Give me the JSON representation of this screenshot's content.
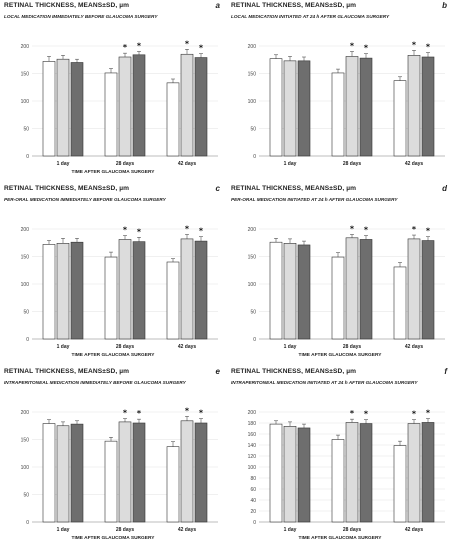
{
  "chart_data": [
    {
      "id": "a",
      "type": "bar",
      "letter": "a",
      "title": "RETINAL THICKNESS, MEANS±SD, µm",
      "subtitle": "LOCAL MEDICATION IMMEDIATELY BEFORE GLAUCOMA SURGERY",
      "xlabel": "TIME AFTER GLAUCOMA SURGERY",
      "ylabel": "",
      "categories": [
        "1 day",
        "28 days",
        "42 days"
      ],
      "yticks": [
        0,
        50,
        100,
        150,
        200
      ],
      "ylim": [
        0,
        200
      ],
      "series": [
        {
          "color": "#ffffff",
          "values": [
            172,
            151,
            133
          ],
          "sd": [
            9,
            8,
            7
          ]
        },
        {
          "color": "#dcdcdc",
          "values": [
            176,
            180,
            185
          ],
          "sd": [
            7,
            7,
            9
          ]
        },
        {
          "color": "#6e6e6e",
          "values": [
            170,
            184,
            179
          ],
          "sd": [
            6,
            6,
            7
          ]
        }
      ],
      "stars": [
        [
          false,
          false,
          false
        ],
        [
          false,
          true,
          true
        ],
        [
          false,
          true,
          true
        ]
      ]
    },
    {
      "id": "b",
      "type": "bar",
      "letter": "b",
      "title": "RETINAL THICKNESS, MEANS±SD, µm",
      "subtitle": "LOCAL MEDICATION INITIATED AT 24 h AFTER GLAUCOMA SURGERY",
      "xlabel": "",
      "ylabel": "",
      "categories": [
        "1 day",
        "28 days",
        "42 days"
      ],
      "yticks": [
        0,
        50,
        100,
        150,
        200
      ],
      "ylim": [
        0,
        200
      ],
      "series": [
        {
          "color": "#ffffff",
          "values": [
            177,
            151,
            137
          ],
          "sd": [
            7,
            7,
            7
          ]
        },
        {
          "color": "#dcdcdc",
          "values": [
            173,
            181,
            183
          ],
          "sd": [
            8,
            9,
            9
          ]
        },
        {
          "color": "#6e6e6e",
          "values": [
            173,
            178,
            180
          ],
          "sd": [
            7,
            8,
            8
          ]
        }
      ],
      "stars": [
        [
          false,
          false,
          false
        ],
        [
          false,
          true,
          true
        ],
        [
          false,
          true,
          true
        ]
      ]
    },
    {
      "id": "c",
      "type": "bar",
      "letter": "c",
      "title": "RETINAL THICKNESS, MEANS±SD, µm",
      "subtitle": "PER-ORAL MEDICATION IMMEDIATELY BEFORE GLAUCOMA SURGERY",
      "xlabel": "TIME AFTER GLAUCOMA SURGERY",
      "ylabel": "",
      "categories": [
        "1 day",
        "28 days",
        "42 days"
      ],
      "yticks": [
        0,
        50,
        100,
        150,
        200
      ],
      "ylim": [
        0,
        200
      ],
      "series": [
        {
          "color": "#ffffff",
          "values": [
            172,
            149,
            140
          ],
          "sd": [
            7,
            9,
            6
          ]
        },
        {
          "color": "#dcdcdc",
          "values": [
            174,
            181,
            182
          ],
          "sd": [
            9,
            7,
            8
          ]
        },
        {
          "color": "#6e6e6e",
          "values": [
            176,
            177,
            178
          ],
          "sd": [
            7,
            8,
            8
          ]
        }
      ],
      "stars": [
        [
          false,
          false,
          false
        ],
        [
          false,
          true,
          true
        ],
        [
          false,
          true,
          true
        ]
      ]
    },
    {
      "id": "d",
      "type": "bar",
      "letter": "d",
      "title": "RETINAL THICKNESS, MEANS±SD, µm",
      "subtitle": "PER-ORAL MEDICATION INITIATED AT 24 h AFTER GLAUCOMA SURGERY",
      "xlabel": "TIME AFTER GLAUCOMA SURGERY",
      "ylabel": "",
      "categories": [
        "1 day",
        "28 days",
        "42 days"
      ],
      "yticks": [
        0,
        50,
        100,
        150,
        200
      ],
      "ylim": [
        0,
        200
      ],
      "series": [
        {
          "color": "#ffffff",
          "values": [
            176,
            149,
            131
          ],
          "sd": [
            7,
            8,
            8
          ]
        },
        {
          "color": "#dcdcdc",
          "values": [
            174,
            184,
            182
          ],
          "sd": [
            8,
            6,
            7
          ]
        },
        {
          "color": "#6e6e6e",
          "values": [
            171,
            181,
            179
          ],
          "sd": [
            7,
            7,
            7
          ]
        }
      ],
      "stars": [
        [
          false,
          false,
          false
        ],
        [
          false,
          true,
          true
        ],
        [
          false,
          true,
          true
        ]
      ]
    },
    {
      "id": "e",
      "type": "bar",
      "letter": "e",
      "title": "RETINAL THICKNESS, MEANS±SD, µm",
      "subtitle": "INTRAPERITONEAL MEDICATION IMMEDIATELY BEFORE GLAUCOMA SURGERY",
      "xlabel": "TIME AFTER GLAUCOMA SURGERY",
      "ylabel": "",
      "categories": [
        "1 day",
        "28 days",
        "42 days"
      ],
      "yticks": [
        0,
        50,
        100,
        150,
        200
      ],
      "ylim": [
        0,
        200
      ],
      "series": [
        {
          "color": "#ffffff",
          "values": [
            179,
            147,
            137
          ],
          "sd": [
            7,
            7,
            9
          ]
        },
        {
          "color": "#dcdcdc",
          "values": [
            175,
            182,
            184
          ],
          "sd": [
            7,
            6,
            8
          ]
        },
        {
          "color": "#6e6e6e",
          "values": [
            178,
            180,
            180
          ],
          "sd": [
            6,
            7,
            8
          ]
        }
      ],
      "stars": [
        [
          false,
          false,
          false
        ],
        [
          false,
          true,
          true
        ],
        [
          false,
          true,
          true
        ]
      ]
    },
    {
      "id": "f",
      "type": "bar",
      "letter": "f",
      "title": "RETINAL THICKNESS, MEANS±SD, µm",
      "subtitle": "INTRAPERITONEAL MEDICATION INITIATED AT 24 h AFTER GLAUCOMA SURGERY",
      "xlabel": "TIME AFTER GLAUCOMA SURGERY",
      "ylabel": "",
      "categories": [
        "1 day",
        "28 days",
        "42 days"
      ],
      "yticks": [
        0,
        20,
        40,
        60,
        80,
        100,
        120,
        140,
        160,
        180,
        200
      ],
      "ylim": [
        0,
        200
      ],
      "series": [
        {
          "color": "#ffffff",
          "values": [
            178,
            150,
            139
          ],
          "sd": [
            6,
            8,
            8
          ]
        },
        {
          "color": "#dcdcdc",
          "values": [
            174,
            181,
            179
          ],
          "sd": [
            8,
            6,
            7
          ]
        },
        {
          "color": "#6e6e6e",
          "values": [
            171,
            179,
            181
          ],
          "sd": [
            7,
            7,
            7
          ]
        }
      ],
      "stars": [
        [
          false,
          false,
          false
        ],
        [
          false,
          true,
          true
        ],
        [
          false,
          true,
          true
        ]
      ]
    }
  ]
}
